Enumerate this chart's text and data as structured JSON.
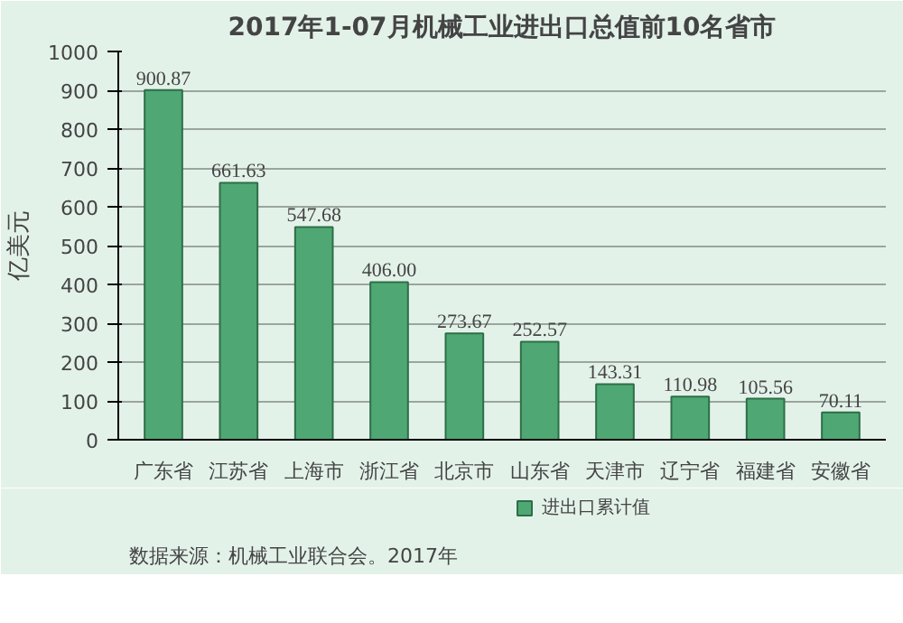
{
  "chart_data": {
    "type": "bar",
    "title": "2017年1-07月机械工业进出口总值前10名省市",
    "ylabel": "亿美元",
    "categories": [
      "广东省",
      "江苏省",
      "上海市",
      "浙江省",
      "北京市",
      "山东省",
      "天津市",
      "辽宁省",
      "福建省",
      "安徽省"
    ],
    "series": [
      {
        "name": "进出口累计值",
        "color": "#4fa873",
        "values": [
          900.87,
          661.63,
          547.68,
          406.0,
          273.67,
          252.57,
          143.31,
          110.98,
          105.56,
          70.11
        ],
        "value_labels": [
          "900.87",
          "661.63",
          "547.68",
          "406.00",
          "273.67",
          "252.57",
          "143.31",
          "110.98",
          "105.56",
          "70.11"
        ]
      }
    ],
    "ylim": [
      0,
      1000
    ],
    "yticks": [
      0,
      100,
      200,
      300,
      400,
      500,
      600,
      700,
      800,
      900,
      1000
    ],
    "grid": "y",
    "legend": "bottom",
    "annotations": [
      "数据来源：机械工业联合会。2017年"
    ]
  }
}
